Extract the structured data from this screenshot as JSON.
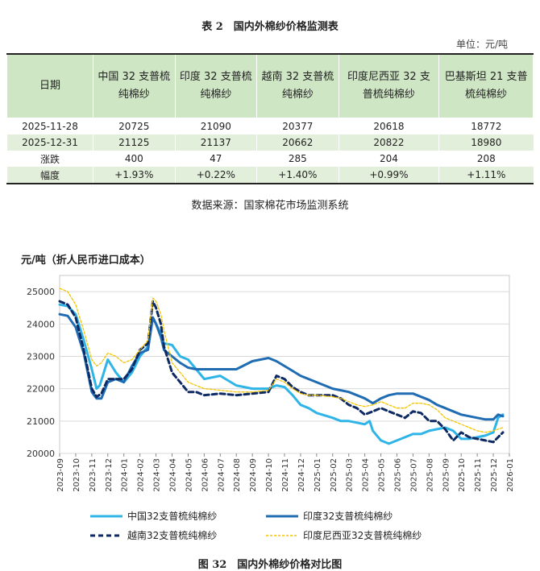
{
  "table": {
    "caption": "表 2　国内外棉纱价格监测表",
    "unit": "单位：元/吨",
    "headers": [
      "日期",
      "中国 32 支普梳纯棉纱",
      "印度 32 支普梳纯棉纱",
      "越南 32 支普梳纯棉纱",
      "印度尼西亚 32 支普梳纯棉纱",
      "巴基斯坦 21 支普梳纯棉纱"
    ],
    "rows": [
      [
        "2025-11-28",
        "20725",
        "21090",
        "20377",
        "20618",
        "18772"
      ],
      [
        "2025-12-31",
        "21125",
        "21137",
        "20662",
        "20822",
        "18980"
      ],
      [
        "涨跌",
        "400",
        "47",
        "285",
        "204",
        "208"
      ],
      [
        "幅度",
        "+1.93%",
        "+0.22%",
        "+1.40%",
        "+0.99%",
        "+1.11%"
      ]
    ],
    "source": "数据来源：国家棉花市场监测系统"
  },
  "chart_data": {
    "type": "line",
    "title": "元/吨（折人民币进口成本）",
    "caption": "图 32　国内外棉纱价格对比图",
    "ylim": [
      20000,
      25500
    ],
    "yticks": [
      "20000",
      "21000",
      "22000",
      "23000",
      "24000",
      "25000"
    ],
    "categories": [
      "2023-09",
      "2023-10",
      "2023-11",
      "2023-12",
      "2024-01",
      "2024-02",
      "2024-03",
      "2024-04",
      "2024-05",
      "2024-06",
      "2024-07",
      "2024-08",
      "2024-09",
      "2024-10",
      "2024-11",
      "2024-12",
      "2025-01",
      "2025-02",
      "2025-03",
      "2025-04",
      "2025-05",
      "2025-06",
      "2025-07",
      "2025-08",
      "2025-09",
      "2025-10",
      "2025-11",
      "2025-12",
      "2026-01"
    ],
    "series": [
      {
        "name": "中国32支普梳纯棉纱",
        "color": "#2fb4e8",
        "style": "solid",
        "x": [
          0,
          0.5,
          1,
          1.5,
          2,
          2.3,
          2.5,
          3,
          3.5,
          4,
          4.5,
          5,
          5.5,
          5.8,
          6,
          6.3,
          6.5,
          7,
          7.5,
          8,
          8.5,
          9,
          10,
          11,
          12,
          13,
          13.5,
          14,
          14.5,
          15,
          15.5,
          16,
          17,
          17.5,
          18,
          18.5,
          19,
          19.3,
          19.5,
          20,
          20.5,
          21,
          21.5,
          22,
          22.5,
          23,
          23.5,
          24,
          24.5,
          25,
          25.5,
          26,
          26.5,
          27,
          27.3,
          27.6
        ],
        "y": [
          24600,
          24550,
          24300,
          23500,
          22600,
          22000,
          22100,
          22900,
          22500,
          22200,
          22500,
          23000,
          23300,
          24200,
          24000,
          23700,
          23400,
          23350,
          23000,
          22900,
          22600,
          22300,
          22400,
          22100,
          22000,
          22000,
          22100,
          22050,
          21800,
          21500,
          21400,
          21250,
          21100,
          21000,
          21000,
          20950,
          20900,
          21000,
          20700,
          20400,
          20300,
          20400,
          20500,
          20600,
          20600,
          20700,
          20750,
          20800,
          20700,
          20450,
          20450,
          20500,
          20550,
          20650,
          21100,
          21200
        ]
      },
      {
        "name": "印度32支普梳纯棉纱",
        "color": "#1f6cb3",
        "style": "solid",
        "x": [
          0,
          0.5,
          1,
          1.5,
          2,
          2.3,
          2.6,
          3,
          3.5,
          4,
          4.5,
          5,
          5.5,
          5.8,
          6,
          6.3,
          6.5,
          7,
          7.5,
          8,
          8.5,
          9,
          10,
          11,
          12,
          13,
          13.5,
          14,
          14.5,
          15,
          15.5,
          16,
          17,
          17.5,
          18,
          18.5,
          19,
          19.5,
          20,
          20.5,
          21,
          21.5,
          22,
          22.5,
          23,
          23.5,
          24,
          24.5,
          25,
          25.5,
          26,
          26.5,
          27,
          27.3,
          27.6
        ],
        "y": [
          24300,
          24250,
          23900,
          23100,
          21900,
          21700,
          21700,
          22200,
          22300,
          22200,
          22700,
          23100,
          23200,
          24200,
          24000,
          23600,
          23200,
          23000,
          22800,
          22650,
          22600,
          22600,
          22600,
          22600,
          22850,
          22950,
          22850,
          22700,
          22550,
          22400,
          22300,
          22200,
          22000,
          21950,
          21900,
          21800,
          21700,
          21550,
          21700,
          21800,
          21850,
          21850,
          21850,
          21750,
          21650,
          21500,
          21400,
          21300,
          21200,
          21150,
          21100,
          21050,
          21050,
          21200,
          21150
        ]
      },
      {
        "name": "越南32支普梳纯棉纱",
        "color": "#0e2a63",
        "style": "dash",
        "x": [
          0,
          0.5,
          1,
          1.5,
          2,
          2.3,
          2.6,
          3,
          3.5,
          4,
          4.5,
          5,
          5.5,
          5.8,
          6,
          6.3,
          6.5,
          7,
          7.5,
          8,
          8.5,
          9,
          10,
          11,
          12,
          13,
          13.5,
          14,
          14.5,
          15,
          15.5,
          16,
          17,
          17.5,
          18,
          18.5,
          19,
          19.5,
          20,
          20.5,
          21,
          21.5,
          22,
          22.5,
          23,
          23.5,
          24,
          24.5,
          25,
          25.5,
          26,
          26.5,
          27,
          27.3,
          27.6
        ],
        "y": [
          24700,
          24600,
          24200,
          23200,
          22000,
          21750,
          21850,
          22300,
          22300,
          22300,
          22600,
          23200,
          23400,
          24700,
          24500,
          24000,
          23300,
          22500,
          22200,
          21900,
          21900,
          21800,
          21850,
          21800,
          21850,
          21900,
          22400,
          22300,
          22050,
          21900,
          21800,
          21800,
          21800,
          21700,
          21500,
          21400,
          21200,
          21300,
          21400,
          21300,
          21200,
          21100,
          21300,
          21250,
          21000,
          21000,
          20750,
          20400,
          20650,
          20500,
          20450,
          20400,
          20350,
          20500,
          20650
        ]
      },
      {
        "name": "印度尼西亚32支普梳纯棉纱",
        "color": "#f5c400",
        "style": "dot",
        "x": [
          0,
          0.5,
          1,
          1.5,
          2,
          2.3,
          2.6,
          3,
          3.5,
          4,
          4.5,
          5,
          5.5,
          5.8,
          6,
          6.3,
          6.5,
          7,
          7.5,
          8,
          8.5,
          9,
          10,
          11,
          12,
          13,
          13.5,
          14,
          14.5,
          15,
          15.5,
          16,
          17,
          17.5,
          18,
          18.5,
          19,
          19.5,
          20,
          20.5,
          21,
          21.5,
          22,
          22.5,
          23,
          23.5,
          24,
          24.5,
          25,
          25.5,
          26,
          26.5,
          27,
          27.3,
          27.6
        ],
        "y": [
          25100,
          25000,
          24600,
          23800,
          22900,
          22700,
          22800,
          23100,
          23000,
          22800,
          22900,
          23200,
          23500,
          24800,
          24700,
          24300,
          23800,
          22800,
          22500,
          22200,
          22100,
          22000,
          21950,
          21900,
          21900,
          21950,
          22300,
          22200,
          22000,
          21850,
          21800,
          21800,
          21750,
          21700,
          21600,
          21500,
          21450,
          21500,
          21600,
          21500,
          21400,
          21400,
          21550,
          21550,
          21500,
          21350,
          21100,
          21000,
          20900,
          20800,
          20700,
          20650,
          20700,
          20750,
          20800
        ]
      }
    ]
  }
}
